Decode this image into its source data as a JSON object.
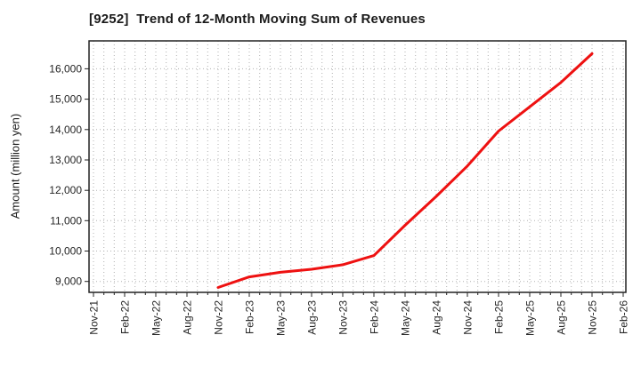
{
  "chart_data": {
    "type": "line",
    "title": "[9252]  Trend of 12-Month Moving Sum of Revenues",
    "ylabel": "Amount (million yen)",
    "xlabel": "",
    "grid": true,
    "legend": false,
    "x_tick_labels": [
      "Nov-21",
      "Feb-22",
      "May-22",
      "Aug-22",
      "Nov-22",
      "Feb-23",
      "May-23",
      "Aug-23",
      "Nov-23",
      "Feb-24",
      "May-24",
      "Aug-24",
      "Nov-24",
      "Feb-25",
      "May-25",
      "Aug-25",
      "Nov-25",
      "Feb-26"
    ],
    "y_tick_values": [
      9000,
      10000,
      11000,
      12000,
      13000,
      14000,
      15000,
      16000
    ],
    "y_tick_labels": [
      "9,000",
      "10,000",
      "11,000",
      "12,000",
      "13,000",
      "14,000",
      "15,000",
      "16,000"
    ],
    "ylim": [
      8640,
      16920
    ],
    "x_axis_months": {
      "start": "Nov-21",
      "end": "Feb-26",
      "minor_grid_interval": 1,
      "label_interval": 3
    },
    "series": [
      {
        "name": "12-Month Moving Sum of Revenues",
        "color": "#ee1111",
        "x": [
          "Nov-22",
          "Feb-23",
          "May-23",
          "Aug-23",
          "Nov-23",
          "Feb-24",
          "May-24",
          "Aug-24",
          "Nov-24",
          "Feb-25",
          "May-25",
          "Aug-25",
          "Nov-25"
        ],
        "values": [
          8800,
          9150,
          9300,
          9400,
          9550,
          9850,
          10850,
          11800,
          12800,
          13950,
          14750,
          15550,
          16500
        ]
      }
    ],
    "colors": {
      "line": "#ee1111",
      "grid": "#b0b0b0",
      "axis": "#222222",
      "text": "#262626",
      "title": "#1a1a1a",
      "background": "#ffffff"
    }
  }
}
